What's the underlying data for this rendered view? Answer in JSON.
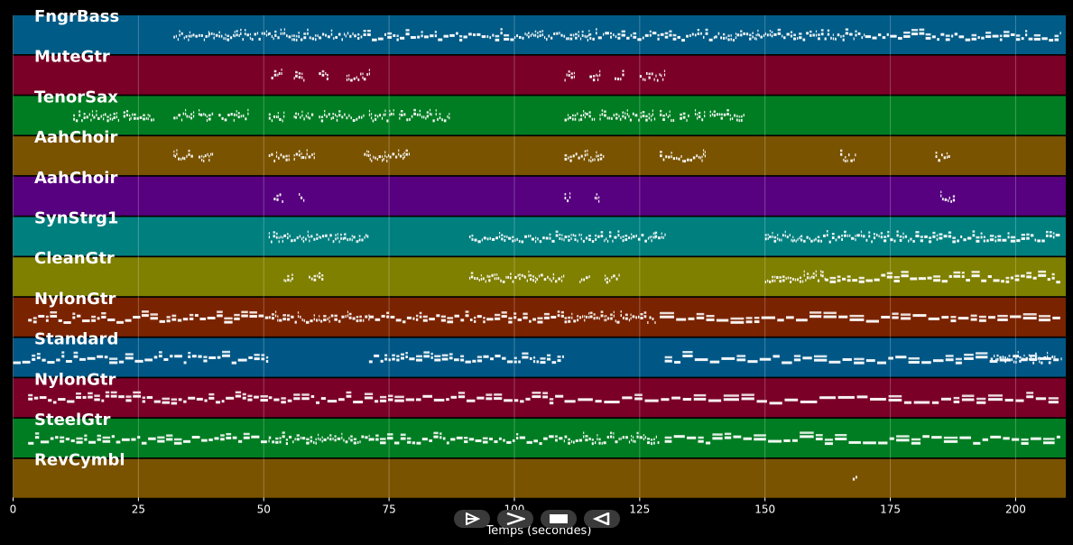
{
  "chart_data": {
    "type": "piano-roll",
    "xlabel": "Temps (secondes)",
    "xlim": [
      0,
      210
    ],
    "xticks": [
      0,
      25,
      50,
      75,
      100,
      125,
      150,
      175,
      200
    ],
    "grid": true,
    "tracks": [
      {
        "name": "FngrBass",
        "color": "#005b86",
        "segments": [
          [
            32,
            39
          ],
          [
            39,
            51
          ],
          [
            51,
            68
          ],
          [
            68,
            100
          ],
          [
            100,
            115
          ],
          [
            115,
            140
          ],
          [
            140,
            150
          ],
          [
            150,
            170
          ],
          [
            170,
            209
          ]
        ]
      },
      {
        "name": "MuteGtr",
        "color": "#7a0028",
        "segments": [
          [
            51.5,
            53.5
          ],
          [
            56,
            58
          ],
          [
            61,
            63
          ],
          [
            66.5,
            71
          ],
          [
            110,
            112
          ],
          [
            115,
            117
          ],
          [
            120,
            122
          ],
          [
            125,
            130
          ]
        ]
      },
      {
        "name": "TenorSax",
        "color": "#007d22",
        "segments": [
          [
            12,
            16
          ],
          [
            16,
            21
          ],
          [
            22,
            28
          ],
          [
            32,
            36
          ],
          [
            37,
            40
          ],
          [
            41,
            44
          ],
          [
            44,
            47
          ],
          [
            51,
            54
          ],
          [
            56,
            60
          ],
          [
            61,
            70
          ],
          [
            71,
            76
          ],
          [
            77,
            87
          ],
          [
            110,
            116
          ],
          [
            117,
            122
          ],
          [
            122,
            128
          ],
          [
            129,
            132
          ],
          [
            133,
            135
          ],
          [
            136,
            138
          ],
          [
            139,
            146
          ]
        ]
      },
      {
        "name": "AahChoir",
        "color": "#7a5300",
        "segments": [
          [
            32,
            36
          ],
          [
            37,
            40
          ],
          [
            51,
            55
          ],
          [
            56,
            60
          ],
          [
            70,
            79
          ],
          [
            110,
            114
          ],
          [
            114,
            118
          ],
          [
            129,
            138
          ],
          [
            165,
            168
          ],
          [
            184,
            187
          ]
        ]
      },
      {
        "name": "AahChoir",
        "color": "#570080",
        "segments": [
          [
            52,
            54
          ],
          [
            57,
            58
          ],
          [
            110,
            111
          ],
          [
            116,
            117
          ],
          [
            185,
            188
          ]
        ]
      },
      {
        "name": "SynStrg1",
        "color": "#007f7f",
        "segments": [
          [
            51,
            66
          ],
          [
            66,
            71
          ],
          [
            91,
            110
          ],
          [
            110,
            128
          ],
          [
            128,
            130
          ],
          [
            150,
            160
          ],
          [
            160,
            180
          ],
          [
            180,
            209
          ]
        ]
      },
      {
        "name": "CleanGtr",
        "color": "#7f7f00",
        "segments": [
          [
            54,
            56
          ],
          [
            59,
            62
          ],
          [
            91,
            102
          ],
          [
            102,
            110
          ],
          [
            113,
            115
          ],
          [
            118,
            121
          ],
          [
            150,
            162
          ],
          [
            162,
            209
          ]
        ]
      },
      {
        "name": "NylonGtr",
        "color": "#7a2300",
        "segments": [
          [
            3,
            51
          ],
          [
            51,
            71
          ],
          [
            71,
            110
          ],
          [
            110,
            128
          ],
          [
            129,
            209
          ]
        ]
      },
      {
        "name": "Standard",
        "color": "#005786",
        "segments": [
          [
            0,
            51
          ],
          [
            71,
            110
          ],
          [
            130,
            209
          ],
          [
            195,
            208
          ]
        ]
      },
      {
        "name": "NylonGtr",
        "color": "#7a0028",
        "segments": [
          [
            3,
            51
          ],
          [
            51,
            110
          ],
          [
            110,
            209
          ]
        ]
      },
      {
        "name": "SteelGtr",
        "color": "#007d22",
        "segments": [
          [
            3,
            51
          ],
          [
            51,
            71
          ],
          [
            71,
            110
          ],
          [
            110,
            129
          ],
          [
            130,
            209
          ]
        ]
      },
      {
        "name": "RevCymbl",
        "color": "#7a5300",
        "segments": [
          [
            167.5,
            168.5
          ]
        ]
      }
    ]
  },
  "controls": [
    {
      "name": "play-once-button",
      "icon": "play-outline-icon"
    },
    {
      "name": "step-forward-button",
      "icon": "chevron-right-icon"
    },
    {
      "name": "stop-button",
      "icon": "stop-icon"
    },
    {
      "name": "step-back-button",
      "icon": "triangle-left-icon"
    }
  ]
}
